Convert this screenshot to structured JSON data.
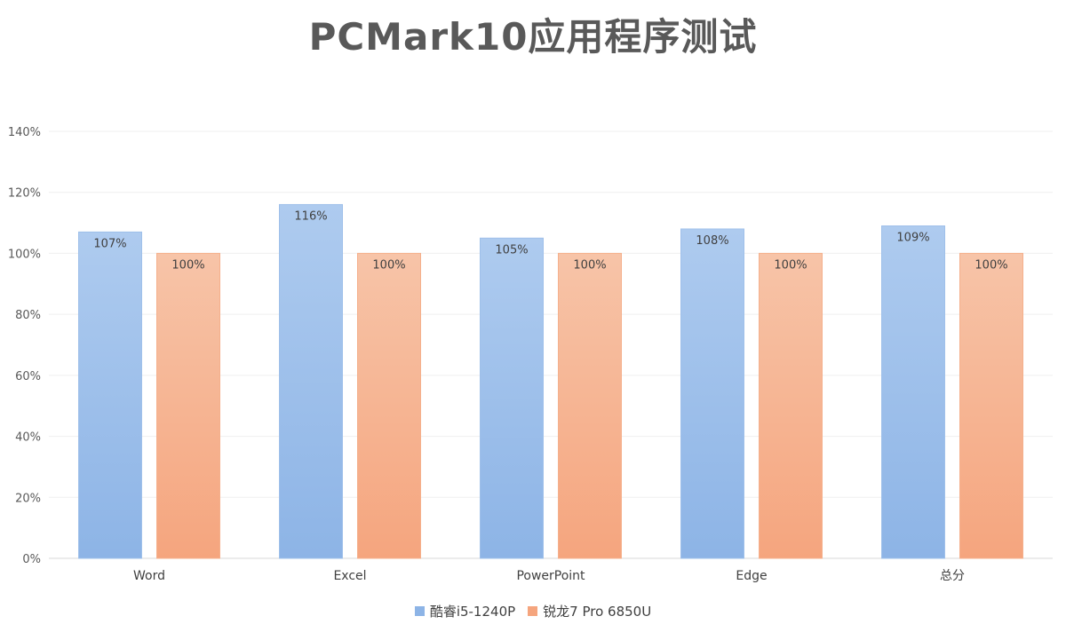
{
  "chart_data": {
    "type": "bar",
    "title": "PCMark10应用程序测试",
    "categories": [
      "Word",
      "Excel",
      "PowerPoint",
      "Edge",
      "总分"
    ],
    "series": [
      {
        "name": "酷睿i5-1240P",
        "values": [
          107,
          116,
          105,
          108,
          109
        ],
        "labels": [
          "107%",
          "116%",
          "105%",
          "108%",
          "109%"
        ],
        "color_top": "#aecbef",
        "color_bottom": "#8db4e6"
      },
      {
        "name": "锐龙7 Pro 6850U",
        "values": [
          100,
          100,
          100,
          100,
          100
        ],
        "labels": [
          "100%",
          "100%",
          "100%",
          "100%",
          "100%"
        ],
        "color_top": "#f7c4a8",
        "color_bottom": "#f5a57e"
      }
    ],
    "ylim": [
      0,
      140
    ],
    "yticks": [
      0,
      20,
      40,
      60,
      80,
      100,
      120,
      140
    ],
    "ytick_labels": [
      "0%",
      "20%",
      "40%",
      "60%",
      "80%",
      "100%",
      "120%",
      "140%"
    ],
    "grid": true,
    "legend_position": "bottom"
  }
}
